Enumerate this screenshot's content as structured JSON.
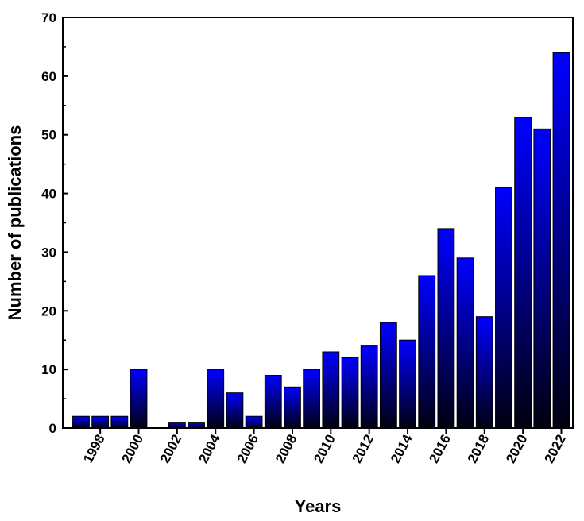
{
  "chart_data": {
    "type": "bar",
    "xlabel": "Years",
    "ylabel": "Number of publications",
    "ylim": [
      0,
      70
    ],
    "yticks": [
      0,
      10,
      20,
      30,
      40,
      50,
      60,
      70
    ],
    "xticks": [
      1998,
      2000,
      2002,
      2004,
      2006,
      2008,
      2010,
      2012,
      2014,
      2016,
      2018,
      2020,
      2022
    ],
    "categories": [
      1997,
      1998,
      1999,
      2000,
      2001,
      2002,
      2003,
      2004,
      2005,
      2006,
      2007,
      2008,
      2009,
      2010,
      2011,
      2012,
      2013,
      2014,
      2015,
      2016,
      2017,
      2018,
      2019,
      2020,
      2021,
      2022
    ],
    "values": [
      2,
      2,
      2,
      10,
      0,
      1,
      1,
      10,
      6,
      2,
      9,
      7,
      10,
      13,
      12,
      14,
      18,
      15,
      26,
      34,
      29,
      19,
      41,
      53,
      51,
      64
    ],
    "bar_gradient": [
      "#0000ff",
      "#00000f"
    ]
  }
}
